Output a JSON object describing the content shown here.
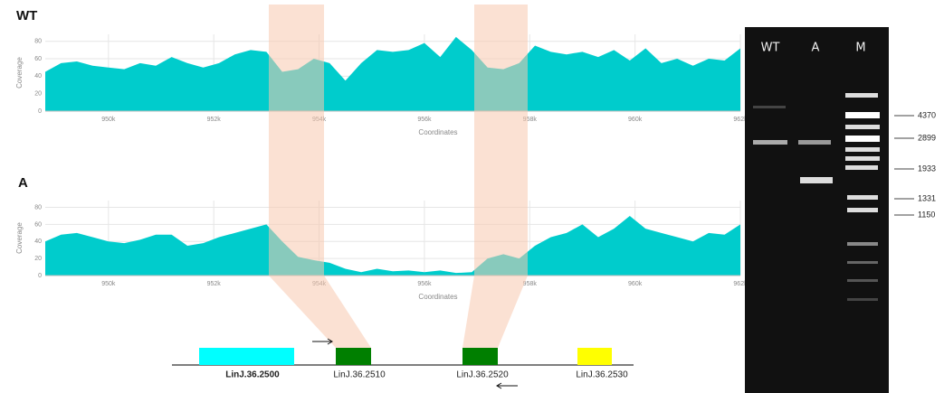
{
  "chart_data": [
    {
      "type": "area",
      "title": "WT",
      "y_label": "Coverage",
      "x_label": "Coordinates",
      "color": "#00cccc",
      "grid": true,
      "x": [
        948800,
        949100,
        949400,
        949700,
        950000,
        950300,
        950600,
        950900,
        951200,
        951500,
        951800,
        952100,
        952400,
        952700,
        953000,
        953300,
        953600,
        953900,
        954200,
        954500,
        954800,
        955100,
        955400,
        955700,
        956000,
        956300,
        956600,
        956900,
        957200,
        957500,
        957800,
        958100,
        958400,
        958700,
        959000,
        959300,
        959600,
        959900,
        960200,
        960500,
        960800,
        961100,
        961400,
        961700,
        962000
      ],
      "values": [
        45,
        55,
        57,
        52,
        50,
        48,
        55,
        52,
        62,
        55,
        50,
        55,
        65,
        70,
        68,
        45,
        48,
        60,
        55,
        35,
        55,
        70,
        68,
        70,
        78,
        62,
        85,
        70,
        50,
        48,
        55,
        75,
        68,
        65,
        68,
        62,
        70,
        58,
        72,
        55,
        60,
        52,
        60,
        58,
        72
      ],
      "xlim": [
        948800,
        962000
      ],
      "xticks": [
        {
          "value": 950000,
          "label": "950k"
        },
        {
          "value": 952000,
          "label": "952k"
        },
        {
          "value": 954000,
          "label": "954k"
        },
        {
          "value": 956000,
          "label": "956k"
        },
        {
          "value": 958000,
          "label": "958k"
        },
        {
          "value": 960000,
          "label": "960k"
        },
        {
          "value": 962000,
          "label": "962k"
        }
      ],
      "ylim": [
        0,
        88
      ],
      "yticks": [
        0,
        20,
        40,
        60,
        80
      ]
    },
    {
      "type": "area",
      "title": "A",
      "y_label": "Coverage",
      "x_label": "Coordinates",
      "color": "#00cccc",
      "grid": true,
      "x": [
        948800,
        949100,
        949400,
        949700,
        950000,
        950300,
        950600,
        950900,
        951200,
        951500,
        951800,
        952100,
        952400,
        952700,
        953000,
        953300,
        953600,
        953900,
        954200,
        954500,
        954800,
        955100,
        955400,
        955700,
        956000,
        956300,
        956600,
        956900,
        957200,
        957500,
        957800,
        958100,
        958400,
        958700,
        959000,
        959300,
        959600,
        959900,
        960200,
        960500,
        960800,
        961100,
        961400,
        961700,
        962000
      ],
      "values": [
        40,
        48,
        50,
        45,
        40,
        38,
        42,
        48,
        48,
        35,
        38,
        45,
        50,
        55,
        60,
        40,
        22,
        18,
        15,
        8,
        4,
        8,
        5,
        6,
        4,
        6,
        3,
        4,
        20,
        25,
        20,
        35,
        45,
        50,
        60,
        45,
        55,
        70,
        55,
        50,
        45,
        40,
        50,
        48,
        60
      ],
      "xlim": [
        948800,
        962000
      ],
      "xticks": [
        {
          "value": 950000,
          "label": "950k"
        },
        {
          "value": 952000,
          "label": "952k"
        },
        {
          "value": 954000,
          "label": "954k"
        },
        {
          "value": 956000,
          "label": "956k"
        },
        {
          "value": 958000,
          "label": "958k"
        },
        {
          "value": 960000,
          "label": "960k"
        },
        {
          "value": 962000,
          "label": "962k"
        }
      ],
      "ylim": [
        0,
        88
      ],
      "yticks": [
        0,
        20,
        40,
        60,
        80
      ]
    }
  ],
  "gene_map": {
    "genes": [
      "LinJ.36.2500",
      "LinJ.36.2510",
      "LinJ.36.2520",
      "LinJ.36.2530"
    ]
  },
  "gel": {
    "lanes": [
      "WT",
      "A",
      "M"
    ],
    "markers": [
      "4370",
      "2899",
      "1933",
      "1331",
      "1150"
    ]
  }
}
